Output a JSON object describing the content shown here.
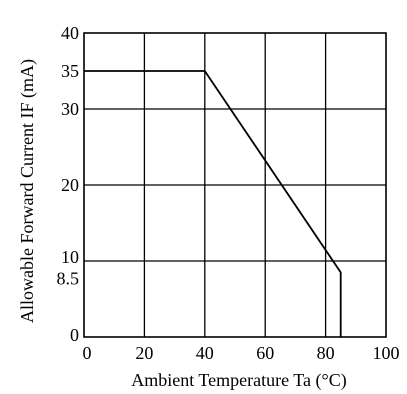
{
  "chart_data": {
    "type": "line",
    "title": "",
    "xlabel": "Ambient Temperature Ta (°C)",
    "ylabel": "Allowable Forward Current IF (mA)",
    "xlim": [
      0,
      100
    ],
    "ylim": [
      0,
      40
    ],
    "grid": true,
    "x_ticks": [
      {
        "value": 0,
        "label": "0"
      },
      {
        "value": 20,
        "label": "20"
      },
      {
        "value": 40,
        "label": "40"
      },
      {
        "value": 60,
        "label": "60"
      },
      {
        "value": 80,
        "label": "80"
      },
      {
        "value": 100,
        "label": "100"
      }
    ],
    "y_ticks": [
      {
        "value": 0,
        "label": "0"
      },
      {
        "value": 8.5,
        "label": "8.5"
      },
      {
        "value": 10,
        "label": "10"
      },
      {
        "value": 20,
        "label": "20"
      },
      {
        "value": 30,
        "label": "30"
      },
      {
        "value": 35,
        "label": "35"
      },
      {
        "value": 40,
        "label": "40"
      }
    ],
    "grid_x": [
      20,
      40,
      60,
      80
    ],
    "grid_y": [
      10,
      20,
      30
    ],
    "series": [
      {
        "x": [
          0,
          40,
          85,
          85
        ],
        "y": [
          35,
          35,
          8.5,
          0
        ],
        "color": "#000000"
      }
    ]
  }
}
